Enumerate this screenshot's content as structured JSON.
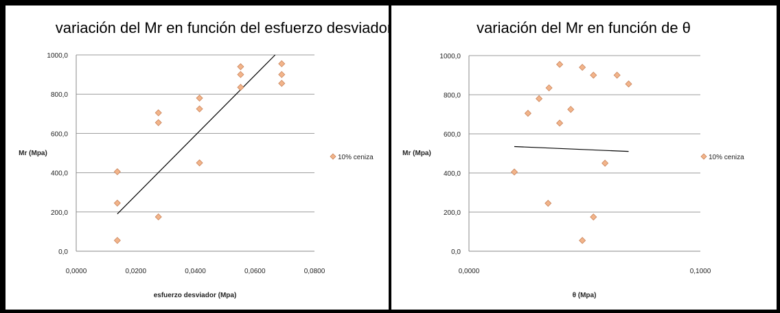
{
  "chart_data": [
    {
      "type": "scatter",
      "title": "variación del Mr en función del esfuerzo desviador",
      "xlabel": "esfuerzo desviador (Mpa)",
      "ylabel": "Mr (Mpa)",
      "xlim": [
        0,
        0.08
      ],
      "ylim": [
        0,
        1000
      ],
      "x_ticks": [
        "0,0000",
        "0,0200",
        "0,0400",
        "0,0600",
        "0,0800"
      ],
      "y_ticks": [
        "0,0",
        "200,0",
        "400,0",
        "600,0",
        "800,0",
        "1000,0"
      ],
      "grid": "horizontal",
      "legend_position": "right",
      "series": [
        {
          "name": "10% ceniza",
          "color": "#F2B48A",
          "marker": "diamond",
          "points": [
            [
              0.0138,
              55
            ],
            [
              0.0138,
              245
            ],
            [
              0.0138,
              405
            ],
            [
              0.0276,
              175
            ],
            [
              0.0276,
              655
            ],
            [
              0.0276,
              705
            ],
            [
              0.0414,
              450
            ],
            [
              0.0414,
              725
            ],
            [
              0.0414,
              780
            ],
            [
              0.0552,
              835
            ],
            [
              0.0552,
              900
            ],
            [
              0.0552,
              940
            ],
            [
              0.069,
              855
            ],
            [
              0.069,
              900
            ],
            [
              0.069,
              955
            ]
          ]
        }
      ],
      "trendline": {
        "type": "linear",
        "x": [
          0.0138,
          0.0668
        ],
        "y": [
          190,
          1000
        ]
      }
    },
    {
      "type": "scatter",
      "title": "variación del Mr en función de θ",
      "xlabel": "θ (Mpa)",
      "ylabel": "Mr (Mpa)",
      "xlim": [
        0,
        0.1
      ],
      "ylim": [
        0,
        1000
      ],
      "x_ticks": [
        "0,0000",
        "0,1000"
      ],
      "y_ticks": [
        "0,0",
        "200,0",
        "400,0",
        "600,0",
        "800,0",
        "1000,0"
      ],
      "grid": "horizontal",
      "legend_position": "right",
      "series": [
        {
          "name": "10% ceniza",
          "color": "#F2B48A",
          "marker": "diamond",
          "points": [
            [
              0.0196,
              405
            ],
            [
              0.0255,
              705
            ],
            [
              0.0303,
              780
            ],
            [
              0.0346,
              835
            ],
            [
              0.0342,
              245
            ],
            [
              0.0392,
              955
            ],
            [
              0.0392,
              655
            ],
            [
              0.044,
              725
            ],
            [
              0.049,
              940
            ],
            [
              0.049,
              55
            ],
            [
              0.0538,
              900
            ],
            [
              0.0538,
              175
            ],
            [
              0.0588,
              450
            ],
            [
              0.064,
              900
            ],
            [
              0.069,
              855
            ]
          ]
        }
      ],
      "trendline": {
        "type": "linear",
        "x": [
          0.0196,
          0.069
        ],
        "y": [
          535,
          510
        ]
      }
    }
  ]
}
